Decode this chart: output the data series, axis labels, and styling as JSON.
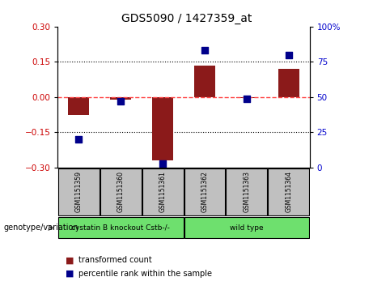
{
  "title": "GDS5090 / 1427359_at",
  "samples": [
    "GSM1151359",
    "GSM1151360",
    "GSM1151361",
    "GSM1151362",
    "GSM1151363",
    "GSM1151364"
  ],
  "transformed_count": [
    -0.075,
    -0.01,
    -0.27,
    0.135,
    -0.005,
    0.12
  ],
  "percentile_rank": [
    20,
    47,
    3,
    83,
    49,
    80
  ],
  "ylim_left": [
    -0.3,
    0.3
  ],
  "ylim_right": [
    0,
    100
  ],
  "yticks_left": [
    -0.3,
    -0.15,
    0,
    0.15,
    0.3
  ],
  "yticks_right": [
    0,
    25,
    50,
    75,
    100
  ],
  "groups": [
    {
      "label": "cystatin B knockout Cstb-/-",
      "indices": [
        0,
        1,
        2
      ],
      "color": "#6EE06E"
    },
    {
      "label": "wild type",
      "indices": [
        3,
        4,
        5
      ],
      "color": "#6EE06E"
    }
  ],
  "group_label_prefix": "genotype/variation",
  "bar_color": "#8B1A1A",
  "dot_color": "#00008B",
  "zero_line_color": "#FF4444",
  "hline_color": "#000000",
  "background_color": "#FFFFFF",
  "tick_label_color_left": "#CC0000",
  "tick_label_color_right": "#0000CC",
  "legend_bar_label": "transformed count",
  "legend_dot_label": "percentile rank within the sample",
  "bar_width": 0.5,
  "dot_size": 30,
  "sample_box_color": "#C0C0C0"
}
